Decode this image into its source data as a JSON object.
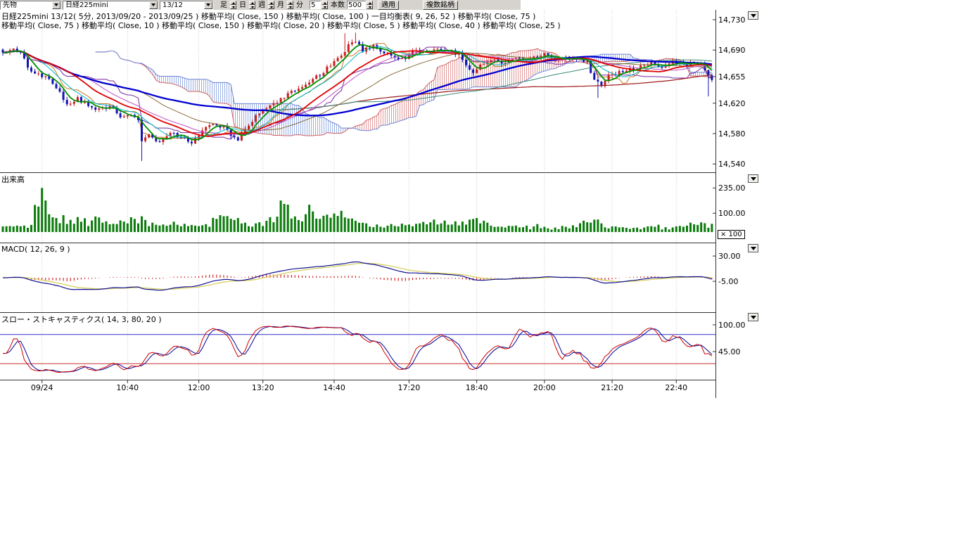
{
  "toolbar": {
    "instrument_type": "先物",
    "symbol": "日経225mini",
    "contract": "13/12",
    "bar_label": "足",
    "unit_day": "日",
    "unit_week": "週",
    "unit_month": "月",
    "unit_minute": "分",
    "minute_value": "5",
    "bars_label": "本数",
    "bars_value": "500",
    "apply_label": "適用",
    "multi_label": "複数銘柄"
  },
  "legend": {
    "line1": "日経225mini 13/12( 5分, 2013/09/20 - 2013/09/25 )   移動平均( Close, 150 )   移動平均( Close, 100 )   一目均衡表( 9, 26, 52 )   移動平均( Close, 75 )",
    "line2": "移動平均( Close, 75 )   移動平均( Close, 10 )   移動平均( Close, 150 )   移動平均( Close, 20 )   移動平均( Close, 5 )   移動平均( Close, 40 )   移動平均( Close, 25 )"
  },
  "panels": {
    "volume_label": "出来高",
    "volume_scale": "× 100",
    "macd_label": "MACD( 12, 26, 9 )",
    "stoch_label": "スロー・ストキャスティクス( 14, 3, 80, 20 )"
  },
  "chart_data": {
    "type": "candlestick-multi-panel",
    "symbol": "日経225mini 13/12",
    "interval": "5分",
    "date_range": "2013/09/20 - 2013/09/25",
    "indicators": {
      "moving_averages": [
        150,
        100,
        75,
        40,
        25,
        20,
        10,
        5
      ],
      "ichimoku": [
        9,
        26,
        52
      ],
      "macd": [
        12,
        26,
        9
      ],
      "slow_stochastics": [
        14,
        3,
        80,
        20
      ]
    },
    "price_axis": {
      "min": 14540,
      "max": 14730,
      "ticks": [
        {
          "v": 14730,
          "label": "14,730"
        },
        {
          "v": 14690,
          "label": "14,690"
        },
        {
          "v": 14655,
          "label": "14,655"
        },
        {
          "v": 14620,
          "label": "14,620"
        },
        {
          "v": 14580,
          "label": "14,580"
        },
        {
          "v": 14540,
          "label": "14,540"
        }
      ]
    },
    "volume_axis": {
      "multiplier": 100,
      "ticks": [
        {
          "v": 235,
          "label": "235.00"
        },
        {
          "v": 100,
          "label": "100.00"
        }
      ]
    },
    "macd_axis": {
      "ticks": [
        {
          "v": 30,
          "label": "30.00"
        },
        {
          "v": -5,
          "label": "-5.00"
        }
      ]
    },
    "stoch_axis": {
      "upper_band": 80,
      "lower_band": 20,
      "ticks": [
        {
          "v": 100,
          "label": "100.00"
        },
        {
          "v": 45,
          "label": "45.00"
        }
      ]
    },
    "time_ticks": [
      {
        "label": "09/24",
        "i": 11
      },
      {
        "label": "10:40",
        "i": 35
      },
      {
        "label": "12:00",
        "i": 55
      },
      {
        "label": "13:20",
        "i": 73
      },
      {
        "label": "14:40",
        "i": 93
      },
      {
        "label": "17:20",
        "i": 114
      },
      {
        "label": "18:40",
        "i": 133
      },
      {
        "label": "20:00",
        "i": 152
      },
      {
        "label": "21:20",
        "i": 171
      },
      {
        "label": "22:40",
        "i": 189
      }
    ],
    "close_anchors": [
      [
        0,
        14688
      ],
      [
        3,
        14691
      ],
      [
        5,
        14687
      ],
      [
        7,
        14668
      ],
      [
        9,
        14660
      ],
      [
        12,
        14655
      ],
      [
        15,
        14642
      ],
      [
        18,
        14618
      ],
      [
        21,
        14627
      ],
      [
        24,
        14615
      ],
      [
        27,
        14611
      ],
      [
        30,
        14616
      ],
      [
        33,
        14602
      ],
      [
        36,
        14607
      ],
      [
        38,
        14600
      ],
      [
        39,
        14572
      ],
      [
        41,
        14577
      ],
      [
        44,
        14570
      ],
      [
        47,
        14581
      ],
      [
        50,
        14574
      ],
      [
        53,
        14569
      ],
      [
        56,
        14585
      ],
      [
        59,
        14591
      ],
      [
        62,
        14588
      ],
      [
        64,
        14578
      ],
      [
        66,
        14571
      ],
      [
        68,
        14588
      ],
      [
        71,
        14602
      ],
      [
        74,
        14615
      ],
      [
        77,
        14622
      ],
      [
        80,
        14632
      ],
      [
        83,
        14639
      ],
      [
        86,
        14648
      ],
      [
        89,
        14658
      ],
      [
        92,
        14670
      ],
      [
        95,
        14683
      ],
      [
        97,
        14696
      ],
      [
        99,
        14703
      ],
      [
        101,
        14690
      ],
      [
        104,
        14696
      ],
      [
        107,
        14688
      ],
      [
        110,
        14682
      ],
      [
        113,
        14679
      ],
      [
        116,
        14690
      ],
      [
        119,
        14687
      ],
      [
        122,
        14692
      ],
      [
        125,
        14689
      ],
      [
        128,
        14684
      ],
      [
        130,
        14668
      ],
      [
        132,
        14662
      ],
      [
        134,
        14671
      ],
      [
        137,
        14679
      ],
      [
        140,
        14672
      ],
      [
        143,
        14680
      ],
      [
        146,
        14677
      ],
      [
        149,
        14681
      ],
      [
        152,
        14684
      ],
      [
        155,
        14676
      ],
      [
        158,
        14680
      ],
      [
        161,
        14677
      ],
      [
        164,
        14674
      ],
      [
        166,
        14650
      ],
      [
        168,
        14643
      ],
      [
        170,
        14655
      ],
      [
        173,
        14660
      ],
      [
        176,
        14664
      ],
      [
        179,
        14668
      ],
      [
        182,
        14673
      ],
      [
        185,
        14669
      ],
      [
        188,
        14674
      ],
      [
        191,
        14671
      ],
      [
        194,
        14673
      ],
      [
        196,
        14674
      ],
      [
        198,
        14656
      ],
      [
        199,
        14653
      ]
    ],
    "long_wicks": [
      [
        39,
        14544
      ],
      [
        96,
        14712
      ],
      [
        99,
        14713
      ],
      [
        167,
        14627
      ],
      [
        198,
        14629
      ]
    ],
    "volume_anchors": [
      [
        0,
        30
      ],
      [
        4,
        34
      ],
      [
        8,
        38
      ],
      [
        11,
        235
      ],
      [
        13,
        95
      ],
      [
        15,
        75
      ],
      [
        17,
        90
      ],
      [
        19,
        65
      ],
      [
        22,
        55
      ],
      [
        25,
        62
      ],
      [
        28,
        50
      ],
      [
        31,
        44
      ],
      [
        34,
        56
      ],
      [
        37,
        70
      ],
      [
        39,
        84
      ],
      [
        42,
        50
      ],
      [
        45,
        40
      ],
      [
        48,
        55
      ],
      [
        51,
        44
      ],
      [
        54,
        34
      ],
      [
        57,
        42
      ],
      [
        60,
        70
      ],
      [
        63,
        85
      ],
      [
        65,
        64
      ],
      [
        68,
        50
      ],
      [
        71,
        46
      ],
      [
        74,
        60
      ],
      [
        77,
        82
      ],
      [
        79,
        150
      ],
      [
        81,
        72
      ],
      [
        83,
        64
      ],
      [
        85,
        95
      ],
      [
        87,
        110
      ],
      [
        89,
        70
      ],
      [
        92,
        76
      ],
      [
        94,
        86
      ],
      [
        96,
        78
      ],
      [
        99,
        60
      ],
      [
        102,
        46
      ],
      [
        105,
        40
      ],
      [
        108,
        34
      ],
      [
        111,
        30
      ],
      [
        114,
        40
      ],
      [
        117,
        46
      ],
      [
        120,
        52
      ],
      [
        123,
        46
      ],
      [
        126,
        40
      ],
      [
        129,
        56
      ],
      [
        131,
        66
      ],
      [
        134,
        46
      ],
      [
        137,
        34
      ],
      [
        140,
        28
      ],
      [
        143,
        32
      ],
      [
        146,
        26
      ],
      [
        149,
        30
      ],
      [
        152,
        28
      ],
      [
        155,
        24
      ],
      [
        158,
        28
      ],
      [
        161,
        26
      ],
      [
        164,
        52
      ],
      [
        166,
        66
      ],
      [
        168,
        46
      ],
      [
        171,
        30
      ],
      [
        174,
        26
      ],
      [
        177,
        22
      ],
      [
        180,
        24
      ],
      [
        183,
        28
      ],
      [
        186,
        26
      ],
      [
        189,
        30
      ],
      [
        192,
        34
      ],
      [
        195,
        38
      ],
      [
        199,
        44
      ]
    ]
  }
}
